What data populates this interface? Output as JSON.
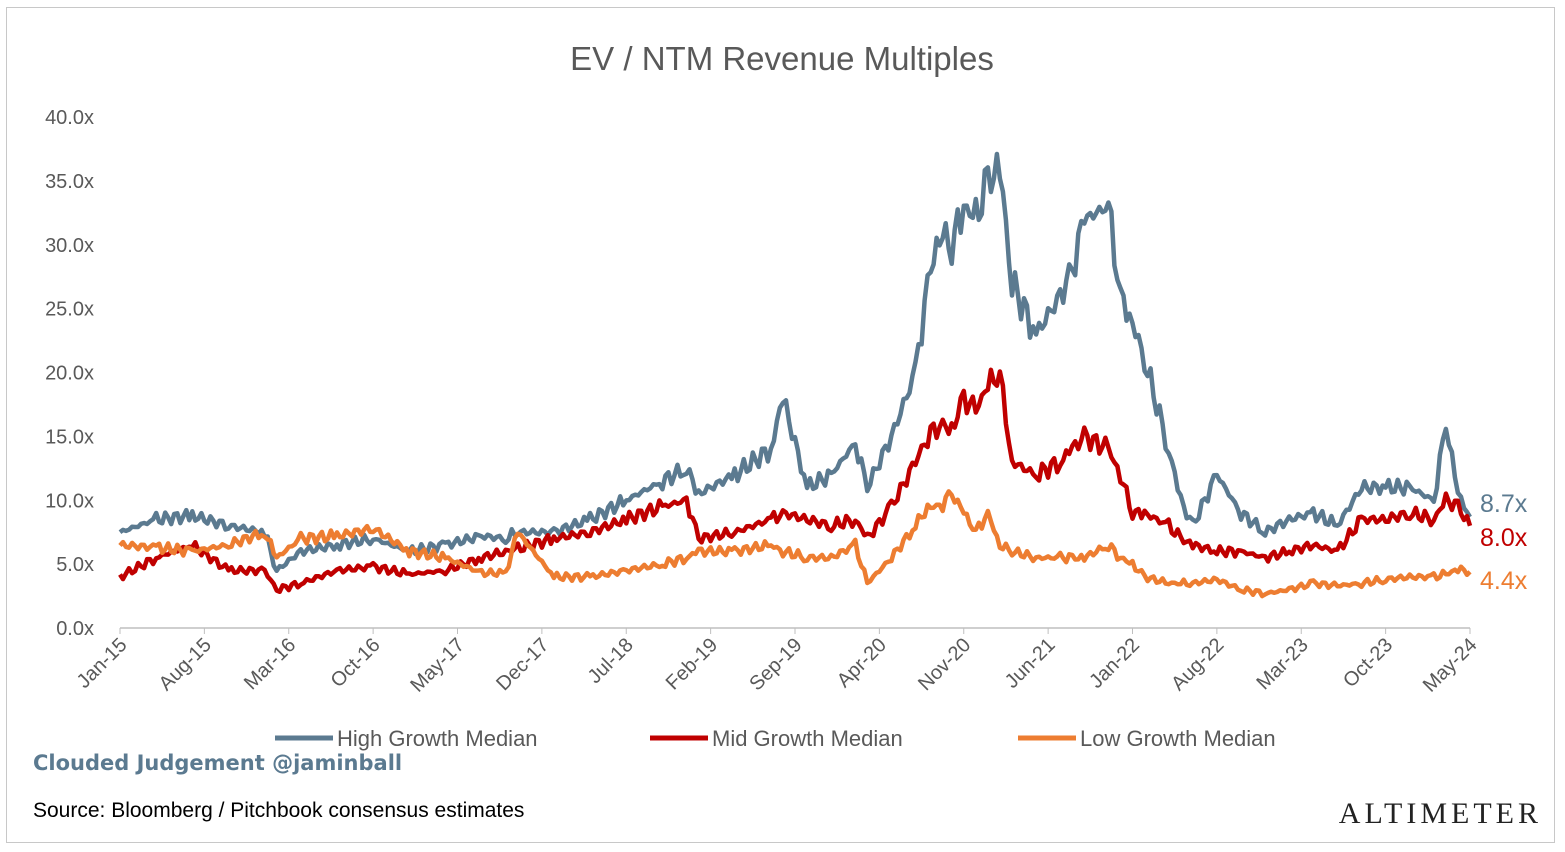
{
  "chart_data": {
    "type": "line",
    "title": "EV / NTM Revenue Multiples",
    "xlabel": "",
    "ylabel": "",
    "ylim": [
      0,
      40
    ],
    "y_ticks": [
      "0.0x",
      "5.0x",
      "10.0x",
      "15.0x",
      "20.0x",
      "25.0x",
      "30.0x",
      "35.0x",
      "40.0x"
    ],
    "x_ticks": [
      "Jan-15",
      "Aug-15",
      "Mar-16",
      "Oct-16",
      "May-17",
      "Dec-17",
      "Jul-18",
      "Feb-19",
      "Sep-19",
      "Apr-20",
      "Nov-20",
      "Jun-21",
      "Jan-22",
      "Aug-22",
      "Mar-23",
      "Oct-23",
      "May-24"
    ],
    "x": [
      "Jan-15",
      "Apr-15",
      "Jul-15",
      "Oct-15",
      "Jan-16",
      "Feb-16",
      "Apr-16",
      "Jul-16",
      "Oct-16",
      "Jan-17",
      "Apr-17",
      "Jul-17",
      "Sep-17",
      "Oct-17",
      "Jan-18",
      "Apr-18",
      "Jul-18",
      "Oct-18",
      "Dec-18",
      "Jan-19",
      "Apr-19",
      "Jul-19",
      "Aug-19",
      "Oct-19",
      "Dec-19",
      "Feb-20",
      "Mar-20",
      "May-20",
      "Jul-20",
      "Aug-20",
      "Sep-20",
      "Oct-20",
      "Nov-20",
      "Dec-20",
      "Jan-21",
      "Feb-21",
      "Mar-21",
      "May-21",
      "Jul-21",
      "Aug-21",
      "Sep-21",
      "Nov-21",
      "Dec-21",
      "Jan-22",
      "Feb-22",
      "Apr-22",
      "May-22",
      "Jun-22",
      "Aug-22",
      "Oct-22",
      "Dec-22",
      "Feb-23",
      "Apr-23",
      "Jun-23",
      "Aug-23",
      "Oct-23",
      "Dec-23",
      "Feb-24",
      "Mar-24",
      "Apr-24",
      "May-24"
    ],
    "series": [
      {
        "name": "High Growth Median",
        "color": "#5b7a90",
        "end_label": "8.7x",
        "values": [
          7.5,
          8.5,
          8.8,
          8.0,
          7.5,
          4.5,
          6.0,
          6.5,
          7.0,
          6.0,
          6.5,
          7.2,
          7.0,
          7.5,
          7.5,
          8.5,
          10.0,
          11.5,
          12.5,
          10.5,
          12.0,
          14.0,
          18.0,
          11.0,
          12.0,
          14.5,
          11.0,
          15.0,
          20.0,
          27.0,
          31.0,
          30.0,
          33.0,
          32.0,
          35.0,
          36.0,
          27.0,
          23.0,
          26.0,
          28.0,
          32.0,
          33.0,
          26.0,
          24.0,
          21.0,
          14.0,
          10.0,
          8.0,
          12.0,
          9.0,
          7.5,
          8.5,
          9.0,
          8.0,
          11.0,
          11.0,
          11.0,
          10.0,
          16.0,
          10.5,
          8.7
        ]
      },
      {
        "name": "Mid Growth Median",
        "color": "#c00000",
        "end_label": "8.0x",
        "values": [
          4.0,
          5.5,
          6.5,
          4.5,
          4.5,
          3.0,
          3.5,
          4.5,
          4.8,
          4.2,
          4.5,
          5.5,
          6.0,
          6.2,
          7.0,
          7.5,
          8.5,
          9.5,
          10.0,
          7.0,
          7.5,
          8.5,
          9.0,
          8.5,
          8.0,
          8.5,
          7.0,
          9.5,
          13.0,
          15.0,
          16.0,
          15.5,
          18.0,
          17.0,
          19.0,
          20.0,
          13.0,
          12.0,
          13.0,
          14.0,
          15.0,
          14.0,
          12.0,
          9.0,
          9.0,
          8.0,
          7.0,
          6.5,
          6.0,
          6.0,
          5.5,
          6.0,
          6.5,
          6.0,
          8.5,
          8.5,
          9.0,
          8.5,
          10.0,
          9.5,
          8.0
        ]
      },
      {
        "name": "Low Growth Median",
        "color": "#ed7d31",
        "end_label": "4.4x",
        "values": [
          6.5,
          6.3,
          6.0,
          6.5,
          7.5,
          5.5,
          7.0,
          7.2,
          7.8,
          6.0,
          5.5,
          4.3,
          4.3,
          7.5,
          4.0,
          4.0,
          4.5,
          5.0,
          5.5,
          6.0,
          6.0,
          6.5,
          6.0,
          5.5,
          5.5,
          6.5,
          3.5,
          5.5,
          8.0,
          9.5,
          9.5,
          10.5,
          9.0,
          7.5,
          9.0,
          6.5,
          6.0,
          5.5,
          5.5,
          5.5,
          5.5,
          6.5,
          5.5,
          5.0,
          4.0,
          3.5,
          3.5,
          3.5,
          3.8,
          3.0,
          2.7,
          3.0,
          3.5,
          3.3,
          3.5,
          3.8,
          4.0,
          4.0,
          4.2,
          4.6,
          4.4
        ]
      }
    ],
    "legend_position": "bottom",
    "grid": false
  },
  "footer": {
    "credit": "Clouded Judgement @jaminball",
    "source": "Source: Bloomberg / Pitchbook consensus estimates",
    "brand": "ALTIMETER"
  }
}
